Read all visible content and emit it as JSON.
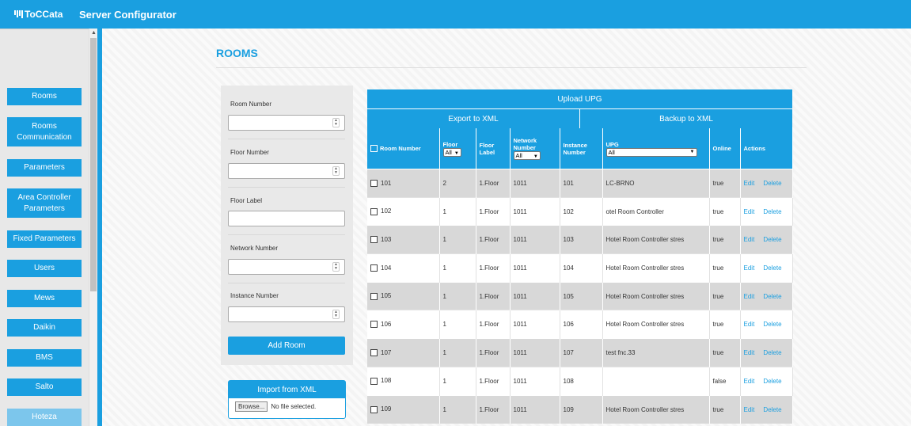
{
  "app": {
    "logo_text": "ToCCata",
    "title": "Server Configurator"
  },
  "sidebar": {
    "items": [
      {
        "label": "Rooms"
      },
      {
        "label": "Rooms Communication"
      },
      {
        "label": "Parameters"
      },
      {
        "label": "Area Controller Parameters"
      },
      {
        "label": "Fixed Parameters"
      },
      {
        "label": "Users"
      },
      {
        "label": "Mews"
      },
      {
        "label": "Daikin"
      },
      {
        "label": "BMS"
      },
      {
        "label": "Salto"
      },
      {
        "label": "Hoteza"
      }
    ]
  },
  "page": {
    "title": "ROOMS"
  },
  "form": {
    "room_number_label": "Room Number",
    "floor_number_label": "Floor Number",
    "floor_label_label": "Floor Label",
    "network_number_label": "Network Number",
    "instance_number_label": "Instance Number",
    "add_button": "Add Room"
  },
  "import": {
    "title": "Import from XML",
    "browse_label": "Browse...",
    "file_status": "No file selected."
  },
  "table": {
    "upload_label": "Upload UPG",
    "export_label": "Export to XML",
    "backup_label": "Backup to XML",
    "headers": {
      "room_number": "Room Number",
      "floor": "Floor",
      "floor_filter": "All",
      "floor_label": "Floor Label",
      "network_number": "Network Number",
      "network_filter": "All",
      "instance_number": "Instance Number",
      "upg": "UPG",
      "upg_filter": "All",
      "online": "Online",
      "actions": "Actions"
    },
    "edit_label": "Edit",
    "delete_label": "Delete",
    "rows": [
      {
        "room": "101",
        "floor": "2",
        "floor_label": "1.Floor",
        "network": "1011",
        "instance": "101",
        "upg": "LC-BRNO",
        "online": "true"
      },
      {
        "room": "102",
        "floor": "1",
        "floor_label": "1.Floor",
        "network": "1011",
        "instance": "102",
        "upg": "otel Room Controller",
        "online": "true"
      },
      {
        "room": "103",
        "floor": "1",
        "floor_label": "1.Floor",
        "network": "1011",
        "instance": "103",
        "upg": "Hotel Room Controller stres",
        "online": "true"
      },
      {
        "room": "104",
        "floor": "1",
        "floor_label": "1.Floor",
        "network": "1011",
        "instance": "104",
        "upg": "Hotel Room Controller stres",
        "online": "true"
      },
      {
        "room": "105",
        "floor": "1",
        "floor_label": "1.Floor",
        "network": "1011",
        "instance": "105",
        "upg": "Hotel Room Controller stres",
        "online": "true"
      },
      {
        "room": "106",
        "floor": "1",
        "floor_label": "1.Floor",
        "network": "1011",
        "instance": "106",
        "upg": "Hotel Room Controller stres",
        "online": "true"
      },
      {
        "room": "107",
        "floor": "1",
        "floor_label": "1.Floor",
        "network": "1011",
        "instance": "107",
        "upg": "test fnc.33",
        "online": "true"
      },
      {
        "room": "108",
        "floor": "1",
        "floor_label": "1.Floor",
        "network": "1011",
        "instance": "108",
        "upg": "",
        "online": "false"
      },
      {
        "room": "109",
        "floor": "1",
        "floor_label": "1.Floor",
        "network": "1011",
        "instance": "109",
        "upg": "Hotel Room Controller stres",
        "online": "true"
      }
    ]
  }
}
